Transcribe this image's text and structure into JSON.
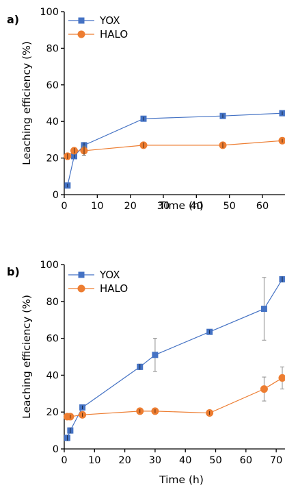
{
  "chart_data": [
    {
      "type": "line",
      "panel_label": "a)",
      "xlabel": "Time (h)",
      "ylabel": "Leaching efficiency (%)",
      "xlim": [
        0,
        66
      ],
      "ylim": [
        0,
        100
      ],
      "xticks": [
        0,
        10,
        20,
        30,
        40,
        50,
        60
      ],
      "yticks": [
        0,
        20,
        40,
        60,
        80,
        100
      ],
      "legend_position": "top-left",
      "series": [
        {
          "name": "YOX",
          "marker": "square",
          "color": "#4472C4",
          "x": [
            1,
            3,
            6,
            24,
            48,
            66
          ],
          "y": [
            5,
            21,
            27,
            41.5,
            43,
            44.5
          ],
          "err": [
            1,
            1,
            1.5,
            1,
            1,
            1
          ]
        },
        {
          "name": "HALO",
          "marker": "circle",
          "color": "#ED7D31",
          "x": [
            1,
            3,
            6,
            24,
            48,
            66
          ],
          "y": [
            21,
            24,
            24,
            27,
            27,
            29.5
          ],
          "err": [
            1.5,
            1.5,
            2.5,
            1.5,
            1.5,
            1
          ]
        }
      ]
    },
    {
      "type": "line",
      "panel_label": "b)",
      "xlabel": "Time (h)",
      "ylabel": "Leaching efficiency (%)",
      "xlim": [
        0,
        72
      ],
      "ylim": [
        0,
        100
      ],
      "xticks": [
        0,
        10,
        20,
        30,
        40,
        50,
        60,
        70
      ],
      "yticks": [
        0,
        20,
        40,
        60,
        80,
        100
      ],
      "legend_position": "top-left",
      "series": [
        {
          "name": "YOX",
          "marker": "square",
          "color": "#4472C4",
          "x": [
            1,
            2,
            6,
            25,
            30,
            48,
            66,
            72
          ],
          "y": [
            6,
            10,
            22.5,
            44.5,
            51,
            63.5,
            76,
            92
          ],
          "err": [
            1.5,
            1.5,
            1,
            1.5,
            9,
            1,
            17,
            1.5
          ]
        },
        {
          "name": "HALO",
          "marker": "circle",
          "color": "#ED7D31",
          "x": [
            1,
            2,
            6,
            25,
            30,
            48,
            66,
            72
          ],
          "y": [
            17.5,
            17.5,
            18.5,
            20.5,
            20.5,
            19.5,
            32.5,
            38.5
          ],
          "err": [
            1,
            1,
            1,
            1,
            1,
            1,
            6.5,
            6
          ]
        }
      ]
    }
  ]
}
